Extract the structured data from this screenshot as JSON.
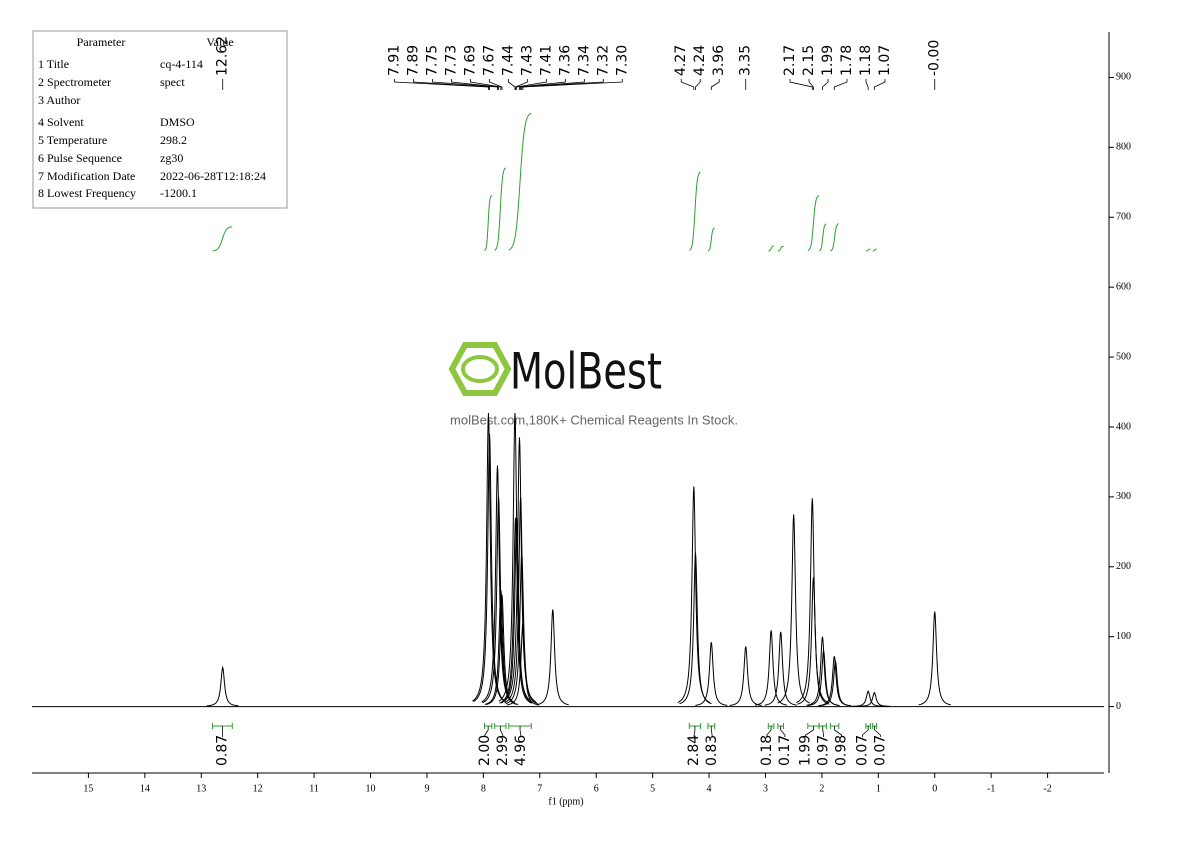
{
  "chart_data": {
    "type": "spectrum",
    "x": [
      12.62,
      7.91,
      7.89,
      7.75,
      7.73,
      7.69,
      7.67,
      7.44,
      7.43,
      7.41,
      7.36,
      7.34,
      7.32,
      7.3,
      6.77,
      4.27,
      4.24,
      3.96,
      3.35,
      2.9,
      2.73,
      2.5,
      2.17,
      2.15,
      1.99,
      1.97,
      1.78,
      1.76,
      1.18,
      1.07,
      0
    ],
    "values": [
      56,
      420,
      390,
      345,
      300,
      167,
      160,
      420,
      270,
      270,
      385,
      300,
      220,
      120,
      139,
      315,
      220,
      92,
      86,
      109,
      107,
      275,
      298,
      185,
      100,
      80,
      72,
      65,
      22,
      20,
      136
    ],
    "color": "#000000",
    "x_label": "f1 (ppm)",
    "xlim": [
      16,
      -3
    ],
    "xticks": [
      15,
      14,
      13,
      12,
      11,
      10,
      9,
      8,
      7,
      6,
      5,
      4,
      3,
      2,
      1,
      0,
      -1,
      -2
    ],
    "ylim": [
      -95,
      965
    ],
    "yticks": [
      0,
      100,
      200,
      300,
      400,
      500,
      600,
      700,
      800,
      900
    ],
    "peak_labels": [
      12.62,
      7.91,
      7.89,
      7.75,
      7.73,
      7.69,
      7.67,
      7.44,
      7.43,
      7.41,
      7.36,
      7.34,
      7.32,
      {
        "value": 7.3,
        "label": "7.30"
      },
      4.27,
      4.24,
      3.96,
      3.35,
      2.17,
      2.15,
      1.99,
      1.78,
      1.18,
      1.07,
      {
        "value": 0,
        "label": "-0.00"
      }
    ],
    "integrals": {
      "color": "#2ca02c",
      "ranges": [
        [
          12.8,
          12.45
        ],
        [
          7.98,
          7.85
        ],
        [
          7.8,
          7.6
        ],
        [
          7.55,
          7.15
        ],
        [
          4.35,
          4.15
        ],
        [
          4.02,
          3.9
        ],
        [
          2.95,
          2.85
        ],
        [
          2.78,
          2.68
        ],
        [
          2.25,
          2.05
        ],
        [
          2.05,
          1.92
        ],
        [
          1.85,
          1.7
        ],
        [
          1.22,
          1.14
        ],
        [
          1.1,
          1.03
        ]
      ],
      "values": [
        0.87,
        2,
        2.99,
        4.96,
        2.84,
        0.83,
        0.18,
        0.17,
        1.99,
        0.97,
        0.98,
        0.07,
        0.07
      ],
      "value_labels": [
        "0.87",
        "2.00",
        "2.99",
        "4.96",
        "2.84",
        "0.83",
        "0.18",
        "0.17",
        "1.99",
        "0.97",
        "0.98",
        "0.07",
        "0.07"
      ]
    }
  },
  "parameters": {
    "header": [
      "Parameter",
      "Value"
    ],
    "rows": [
      [
        "1 Title",
        "cq-4-114"
      ],
      [
        "2 Spectrometer",
        "spect"
      ],
      [
        "3 Author",
        ""
      ],
      [
        "4 Solvent",
        "DMSO"
      ],
      [
        "5 Temperature",
        "298.2"
      ],
      [
        "6 Pulse Sequence",
        "zg30"
      ],
      [
        "7 Modification Date",
        "2022-06-28T12:18:24"
      ],
      [
        "8 Lowest Frequency",
        "-1200.1"
      ]
    ]
  },
  "watermark": {
    "logo": "MolBest",
    "tagline": "molBest.com,180K+ Chemical Reagents In Stock."
  }
}
